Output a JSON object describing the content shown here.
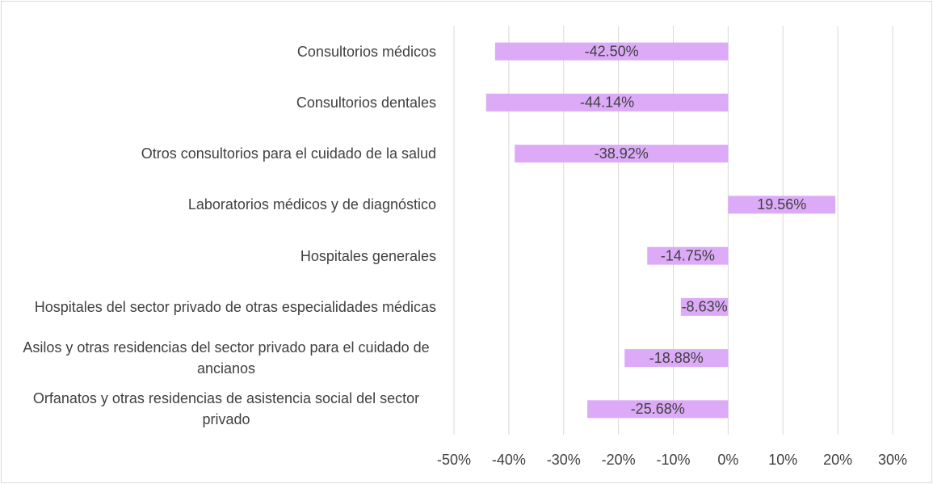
{
  "chart_data": {
    "type": "hbar",
    "categories": [
      "Consultorios médicos",
      "Consultorios dentales",
      "Otros consultorios para el cuidado de la salud",
      "Laboratorios médicos y de diagnóstico",
      "Hospitales generales",
      "Hospitales del sector privado de otras especialidades médicas",
      "Asilos y otras residencias del sector privado para el cuidado de ancianos",
      "Orfanatos y otras residencias de asistencia social del sector privado"
    ],
    "values": [
      -42.5,
      -44.14,
      -38.92,
      19.56,
      -14.75,
      -8.63,
      -18.88,
      -25.68
    ],
    "value_labels": [
      "-42.50%",
      "-44.14%",
      "-38.92%",
      "19.56%",
      "-14.75%",
      "-8.63%",
      "-18.88%",
      "-25.68%"
    ],
    "color": "#dcaaf7",
    "xlim": [
      -50,
      30
    ],
    "xticks": [
      {
        "value": -50,
        "label": "-50%"
      },
      {
        "value": -40,
        "label": "-40%"
      },
      {
        "value": -30,
        "label": "-30%"
      },
      {
        "value": -20,
        "label": "-20%"
      },
      {
        "value": -10,
        "label": "-10%"
      },
      {
        "value": 0,
        "label": "0%"
      },
      {
        "value": 10,
        "label": "10%"
      },
      {
        "value": 20,
        "label": "20%"
      },
      {
        "value": 30,
        "label": "30%"
      }
    ],
    "grid": true
  }
}
